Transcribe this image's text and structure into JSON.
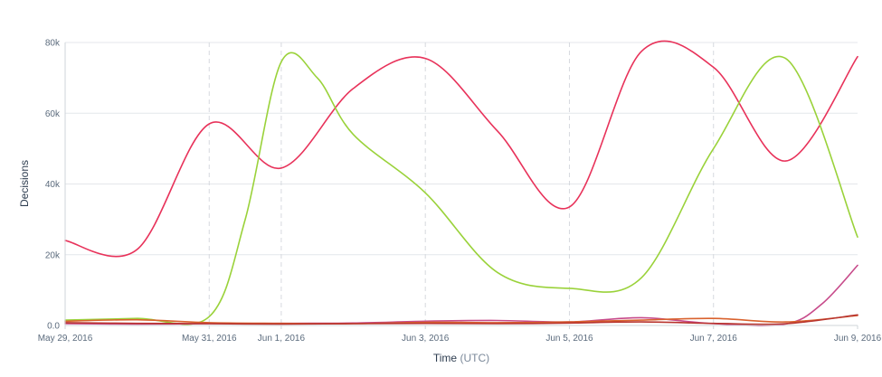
{
  "chart_data": {
    "type": "line",
    "xlabel_main": "Time",
    "xlabel_unit": "(UTC)",
    "ylabel": "Decisions",
    "ylim": [
      0,
      80000
    ],
    "yticks": [
      0,
      20000,
      40000,
      60000,
      80000
    ],
    "ytick_labels": [
      "0.0",
      "20k",
      "40k",
      "60k",
      "80k"
    ],
    "xlim_days": [
      0,
      11
    ],
    "xticks": [
      {
        "day": 0,
        "label": "May 29, 2016"
      },
      {
        "day": 2,
        "label": "May 31, 2016"
      },
      {
        "day": 3,
        "label": "Jun 1, 2016"
      },
      {
        "day": 5,
        "label": "Jun 3, 2016"
      },
      {
        "day": 7,
        "label": "Jun 5, 2016"
      },
      {
        "day": 9,
        "label": "Jun 7, 2016"
      },
      {
        "day": 11,
        "label": "Jun 9, 2016"
      }
    ],
    "grid": true,
    "series": [
      {
        "color": "#e8325a",
        "x": [
          0,
          1,
          2,
          3,
          4,
          5,
          6,
          7,
          8,
          9,
          10,
          11
        ],
        "y": [
          24000,
          21500,
          57000,
          44500,
          67000,
          75500,
          55000,
          33500,
          77500,
          73000,
          46500,
          76000
        ]
      },
      {
        "color": "#9ad23a",
        "x": [
          0,
          1,
          2,
          2.5,
          3,
          3.5,
          4,
          5,
          6,
          7,
          8,
          9,
          10,
          11
        ],
        "y": [
          1500,
          2000,
          2500,
          30000,
          74500,
          70000,
          54000,
          37500,
          15000,
          10500,
          13500,
          50000,
          75500,
          25000
        ]
      },
      {
        "color": "#c74a8a",
        "x": [
          0,
          1,
          2,
          3,
          4,
          5,
          6,
          7,
          8,
          9,
          10,
          10.5,
          11
        ],
        "y": [
          500,
          400,
          500,
          600,
          700,
          1200,
          1400,
          1000,
          2200,
          500,
          400,
          6000,
          17000
        ]
      },
      {
        "color": "#d9622e",
        "x": [
          0,
          1,
          2,
          3,
          4,
          5,
          6,
          7,
          8,
          9,
          10,
          11
        ],
        "y": [
          1200,
          1600,
          800,
          600,
          500,
          900,
          800,
          1000,
          1500,
          2000,
          1000,
          2800
        ]
      },
      {
        "color": "#b8342e",
        "x": [
          0,
          1,
          2,
          3,
          4,
          5,
          6,
          7,
          8,
          9,
          10,
          11
        ],
        "y": [
          800,
          600,
          500,
          400,
          500,
          600,
          500,
          700,
          1000,
          600,
          500,
          3000
        ]
      }
    ]
  }
}
